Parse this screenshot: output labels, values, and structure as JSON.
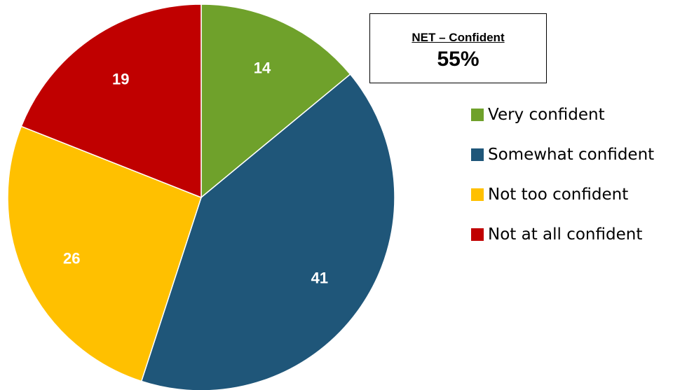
{
  "chart_data": {
    "type": "pie",
    "categories": [
      "Very confident",
      "Somewhat confident",
      "Not too confident",
      "Not at all confident"
    ],
    "values": [
      14,
      41,
      26,
      19
    ],
    "colors": [
      "#6FA12B",
      "#1F5679",
      "#FFC000",
      "#C00000"
    ],
    "legend": {
      "position": "right",
      "entries": [
        "Very confident",
        "Somewhat confident",
        "Not too confident",
        "Not at all confident"
      ]
    }
  },
  "net_box": {
    "label": "NET – Confident",
    "value": "55%"
  }
}
